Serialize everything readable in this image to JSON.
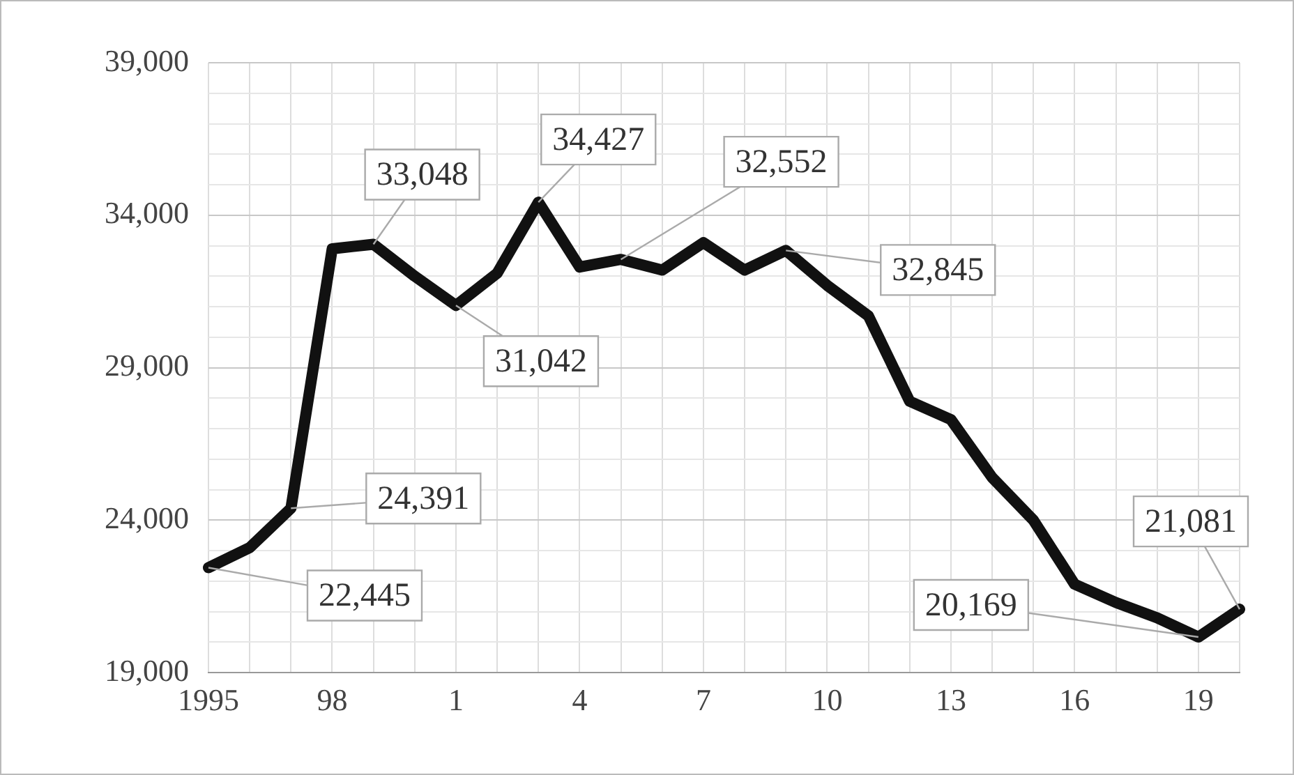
{
  "chart_data": {
    "type": "line",
    "categories": [
      "1995",
      null,
      null,
      "98",
      null,
      null,
      "1",
      null,
      null,
      "4",
      null,
      null,
      "7",
      null,
      null,
      "10",
      null,
      null,
      "13",
      null,
      null,
      "16",
      null,
      null,
      "19",
      null
    ],
    "series": [
      {
        "color": "#111111",
        "values": [
          22445,
          23100,
          24391,
          32900,
          33048,
          32000,
          31042,
          32100,
          34427,
          32300,
          32552,
          32200,
          33100,
          32200,
          32845,
          31700,
          30700,
          27900,
          27300,
          25400,
          24000,
          21900,
          21300,
          20800,
          20169,
          21081
        ],
        "value_labels": [
          "22,445",
          null,
          "24,391",
          null,
          "33,048",
          null,
          "31,042",
          null,
          "34,427",
          null,
          "32,552",
          null,
          null,
          null,
          "32,845",
          null,
          null,
          null,
          null,
          null,
          null,
          null,
          null,
          null,
          "20,169",
          "21,081"
        ]
      }
    ],
    "ylim": [
      19000,
      39000
    ],
    "yticks": [
      {
        "value": 19000,
        "label": "19,000"
      },
      {
        "value": 20000,
        "label": null
      },
      {
        "value": 21000,
        "label": null
      },
      {
        "value": 22000,
        "label": null
      },
      {
        "value": 23000,
        "label": null
      },
      {
        "value": 24000,
        "label": "24,000"
      },
      {
        "value": 25000,
        "label": null
      },
      {
        "value": 26000,
        "label": null
      },
      {
        "value": 27000,
        "label": null
      },
      {
        "value": 28000,
        "label": null
      },
      {
        "value": 29000,
        "label": "29,000"
      },
      {
        "value": 30000,
        "label": null
      },
      {
        "value": 31000,
        "label": null
      },
      {
        "value": 32000,
        "label": null
      },
      {
        "value": 33000,
        "label": null
      },
      {
        "value": 34000,
        "label": "34,000"
      },
      {
        "value": 35000,
        "label": null
      },
      {
        "value": 36000,
        "label": null
      },
      {
        "value": 37000,
        "label": null
      },
      {
        "value": 38000,
        "label": null
      },
      {
        "value": 39000,
        "label": "39,000"
      }
    ],
    "grid": true,
    "legend": false,
    "marker": "none",
    "line_style": "solid"
  }
}
